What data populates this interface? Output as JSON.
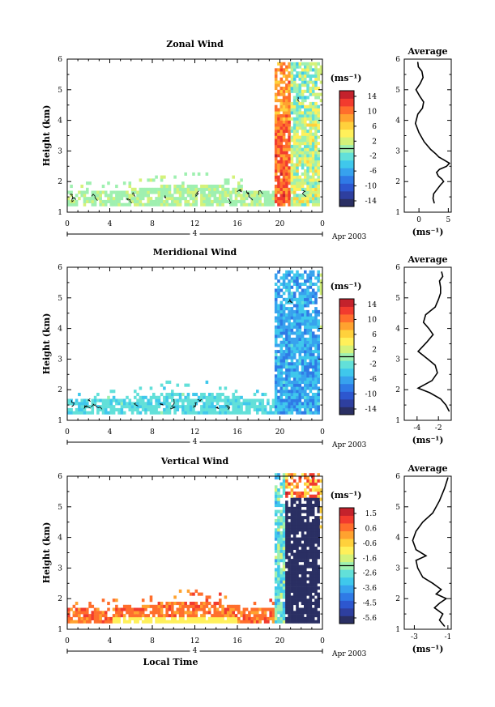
{
  "chart_data": [
    {
      "type": "heatmap",
      "title": "Zonal Wind",
      "ylabel": "Height (km)",
      "xlabel": "",
      "x_ticks": [
        "0",
        "4",
        "8",
        "12",
        "16",
        "20",
        "0"
      ],
      "y_ticks": [
        "1",
        "2",
        "3",
        "4",
        "5",
        "6"
      ],
      "xlim": [
        0,
        24
      ],
      "ylim": [
        1,
        6
      ],
      "date_label": "Apr 2003",
      "day_label": "4",
      "colorbar": {
        "unit": "(ms⁻¹)",
        "ticks": [
          "14",
          "10",
          "6",
          "2",
          "-2",
          "-6",
          "-10",
          "-14"
        ],
        "range": [
          -16,
          16
        ]
      },
      "profile": {
        "title": "Average",
        "xlabel": "(ms⁻¹)",
        "x_ticks": [
          "0",
          "5"
        ],
        "xlim": [
          -2.5,
          5.5
        ],
        "ylim": [
          1,
          6
        ],
        "y_ticks": [
          "1",
          "2",
          "3",
          "4",
          "5",
          "6"
        ],
        "x": [
          2.6,
          2.4,
          2.5,
          3.1,
          3.7,
          4.2,
          3.9,
          3.3,
          3.0,
          3.5,
          4.7,
          5.2,
          4.3,
          3.4,
          2.9,
          2.0,
          0.9,
          0.0,
          -0.6,
          -0.2,
          0.6,
          0.8,
          0.1,
          -0.5,
          0.2,
          0.7,
          0.5,
          -0.1,
          -0.2
        ],
        "height": [
          1.3,
          1.45,
          1.6,
          1.75,
          1.9,
          2.0,
          2.08,
          2.18,
          2.3,
          2.4,
          2.5,
          2.6,
          2.7,
          2.8,
          2.9,
          3.05,
          3.3,
          3.6,
          3.9,
          4.2,
          4.4,
          4.6,
          4.8,
          5.0,
          5.2,
          5.4,
          5.6,
          5.75,
          5.9
        ]
      }
    },
    {
      "type": "heatmap",
      "title": "Meridional Wind",
      "ylabel": "Height (km)",
      "xlabel": "",
      "x_ticks": [
        "0",
        "4",
        "8",
        "12",
        "16",
        "20",
        "0"
      ],
      "y_ticks": [
        "1",
        "2",
        "3",
        "4",
        "5",
        "6"
      ],
      "xlim": [
        0,
        24
      ],
      "ylim": [
        1,
        6
      ],
      "date_label": "Apr 2003",
      "day_label": "4",
      "colorbar": {
        "unit": "(ms⁻¹)",
        "ticks": [
          "14",
          "10",
          "6",
          "2",
          "-2",
          "-6",
          "-10",
          "-14"
        ],
        "range": [
          -16,
          16
        ]
      },
      "profile": {
        "title": "Average",
        "xlabel": "(ms⁻¹)",
        "x_ticks": [
          "-4",
          "-2"
        ],
        "xlim": [
          -5.2,
          -0.8
        ],
        "ylim": [
          1,
          6
        ],
        "y_ticks": [
          "1",
          "2",
          "3",
          "4",
          "5",
          "6"
        ],
        "x": [
          -1.0,
          -1.3,
          -1.8,
          -2.8,
          -3.9,
          -2.6,
          -2.1,
          -2.3,
          -3.0,
          -3.9,
          -3.1,
          -2.5,
          -2.9,
          -3.4,
          -3.2,
          -2.3,
          -2.0,
          -1.8,
          -1.8,
          -1.9,
          -1.6,
          -1.7
        ],
        "height": [
          1.3,
          1.5,
          1.7,
          1.9,
          2.05,
          2.3,
          2.55,
          2.8,
          3.0,
          3.25,
          3.55,
          3.8,
          4.0,
          4.2,
          4.45,
          4.7,
          4.95,
          5.15,
          5.35,
          5.55,
          5.7,
          5.85
        ]
      }
    },
    {
      "type": "heatmap",
      "title": "Vertical Wind",
      "ylabel": "Height (km)",
      "xlabel": "Local Time",
      "x_ticks": [
        "0",
        "4",
        "8",
        "12",
        "16",
        "20",
        "0"
      ],
      "y_ticks": [
        "1",
        "2",
        "3",
        "4",
        "5",
        "6"
      ],
      "xlim": [
        0,
        24
      ],
      "ylim": [
        1,
        6
      ],
      "date_label": "Apr 2003",
      "day_label": "4",
      "colorbar": {
        "unit": "(ms⁻¹)",
        "ticks": [
          "1.5",
          "0.6",
          "-0.6",
          "-1.6",
          "-2.6",
          "-3.6",
          "-4.5",
          "-5.6"
        ],
        "range": [
          -6,
          2
        ]
      },
      "profile": {
        "title": "Average",
        "xlabel": "(ms⁻¹)",
        "x_ticks": [
          "-3",
          "-1"
        ],
        "xlim": [
          -3.6,
          -0.8
        ],
        "ylim": [
          1,
          6
        ],
        "y_ticks": [
          "1",
          "2",
          "3",
          "4",
          "5",
          "6"
        ],
        "x": [
          -1.2,
          -1.5,
          -1.3,
          -1.8,
          -1.5,
          -1.1,
          -1.7,
          -1.4,
          -1.9,
          -2.5,
          -2.8,
          -2.9,
          -2.3,
          -2.9,
          -3.1,
          -2.9,
          -2.5,
          -1.9,
          -1.5,
          -1.2,
          -1.0
        ],
        "height": [
          1.1,
          1.3,
          1.5,
          1.7,
          1.85,
          2.0,
          2.15,
          2.3,
          2.5,
          2.7,
          3.0,
          3.25,
          3.4,
          3.6,
          3.9,
          4.2,
          4.5,
          4.8,
          5.2,
          5.6,
          5.95
        ]
      }
    }
  ]
}
